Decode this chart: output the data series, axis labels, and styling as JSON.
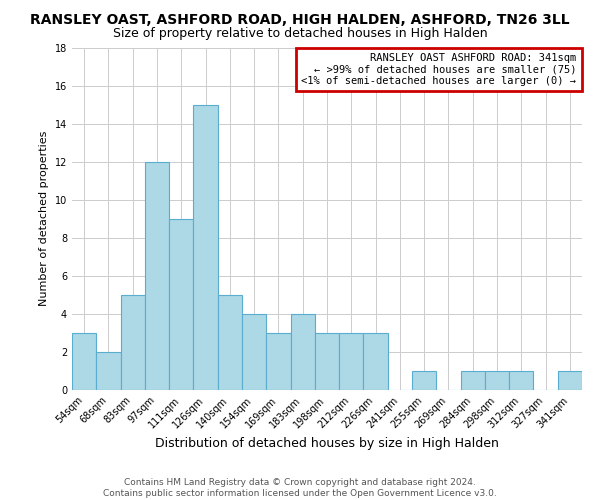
{
  "title": "RANSLEY OAST, ASHFORD ROAD, HIGH HALDEN, ASHFORD, TN26 3LL",
  "subtitle": "Size of property relative to detached houses in High Halden",
  "xlabel": "Distribution of detached houses by size in High Halden",
  "ylabel": "Number of detached properties",
  "bar_labels": [
    "54sqm",
    "68sqm",
    "83sqm",
    "97sqm",
    "111sqm",
    "126sqm",
    "140sqm",
    "154sqm",
    "169sqm",
    "183sqm",
    "198sqm",
    "212sqm",
    "226sqm",
    "241sqm",
    "255sqm",
    "269sqm",
    "284sqm",
    "298sqm",
    "312sqm",
    "327sqm",
    "341sqm"
  ],
  "bar_values": [
    3,
    2,
    5,
    12,
    9,
    15,
    5,
    4,
    3,
    4,
    3,
    3,
    3,
    0,
    1,
    0,
    1,
    1,
    1,
    0,
    1
  ],
  "bar_color": "#add8e6",
  "bar_edge_color": "#5badd0",
  "annotation_box_text": "RANSLEY OAST ASHFORD ROAD: 341sqm\n← >99% of detached houses are smaller (75)\n<1% of semi-detached houses are larger (0) →",
  "annotation_box_edge_color": "#cc0000",
  "annotation_box_facecolor": "#ffffff",
  "ylim": [
    0,
    18
  ],
  "yticks": [
    0,
    2,
    4,
    6,
    8,
    10,
    12,
    14,
    16,
    18
  ],
  "footer_line1": "Contains HM Land Registry data © Crown copyright and database right 2024.",
  "footer_line2": "Contains public sector information licensed under the Open Government Licence v3.0.",
  "title_fontsize": 10,
  "subtitle_fontsize": 9,
  "xlabel_fontsize": 9,
  "ylabel_fontsize": 8,
  "tick_fontsize": 7,
  "annotation_fontsize": 7.5,
  "footer_fontsize": 6.5,
  "background_color": "#ffffff",
  "grid_color": "#cccccc"
}
